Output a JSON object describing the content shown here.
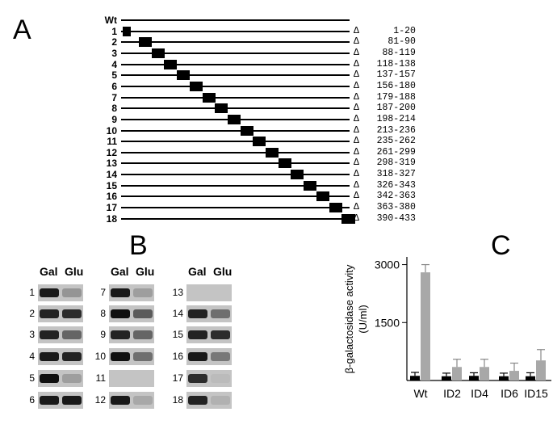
{
  "panel_a": {
    "letter": "A",
    "rows": [
      {
        "id": "Wt",
        "deletion": ""
      },
      {
        "id": "1",
        "deletion": "1-20"
      },
      {
        "id": "2",
        "deletion": "81-90"
      },
      {
        "id": "3",
        "deletion": "88-119"
      },
      {
        "id": "4",
        "deletion": "118-138"
      },
      {
        "id": "5",
        "deletion": "137-157"
      },
      {
        "id": "6",
        "deletion": "156-180"
      },
      {
        "id": "7",
        "deletion": "179-188"
      },
      {
        "id": "8",
        "deletion": "187-200"
      },
      {
        "id": "9",
        "deletion": "198-214"
      },
      {
        "id": "10",
        "deletion": "213-236"
      },
      {
        "id": "11",
        "deletion": "235-262"
      },
      {
        "id": "12",
        "deletion": "261-299"
      },
      {
        "id": "13",
        "deletion": "298-319"
      },
      {
        "id": "14",
        "deletion": "318-327"
      },
      {
        "id": "15",
        "deletion": "326-343"
      },
      {
        "id": "16",
        "deletion": "342-363"
      },
      {
        "id": "17",
        "deletion": "363-380"
      },
      {
        "id": "18",
        "deletion": "390-433"
      }
    ],
    "delta_symbol": "Δ"
  },
  "panel_b": {
    "letter": "B",
    "columns": [
      {
        "header_gal": "Gal",
        "header_glu": "Glu",
        "lanes": [
          {
            "num": "1",
            "gal": 0.9,
            "glu": 0.25
          },
          {
            "num": "2",
            "gal": 0.85,
            "glu": 0.8
          },
          {
            "num": "3",
            "gal": 0.85,
            "glu": 0.5
          },
          {
            "num": "4",
            "gal": 0.9,
            "glu": 0.85
          },
          {
            "num": "5",
            "gal": 0.95,
            "glu": 0.2
          },
          {
            "num": "6",
            "gal": 0.9,
            "glu": 0.9
          }
        ]
      },
      {
        "header_gal": "Gal",
        "header_glu": "Glu",
        "lanes": [
          {
            "num": "7",
            "gal": 0.9,
            "glu": 0.2
          },
          {
            "num": "8",
            "gal": 0.95,
            "glu": 0.55
          },
          {
            "num": "9",
            "gal": 0.85,
            "glu": 0.5
          },
          {
            "num": "10",
            "gal": 0.95,
            "glu": 0.45
          },
          {
            "num": "11",
            "gal": 0.0,
            "glu": 0.0
          },
          {
            "num": "12",
            "gal": 0.9,
            "glu": 0.15
          }
        ]
      },
      {
        "header_gal": "Gal",
        "header_glu": "Glu",
        "lanes": [
          {
            "num": "13",
            "gal": 0.0,
            "glu": 0.0
          },
          {
            "num": "14",
            "gal": 0.85,
            "glu": 0.45
          },
          {
            "num": "15",
            "gal": 0.85,
            "glu": 0.8
          },
          {
            "num": "16",
            "gal": 0.9,
            "glu": 0.4
          },
          {
            "num": "17",
            "gal": 0.8,
            "glu": 0.05
          },
          {
            "num": "18",
            "gal": 0.85,
            "glu": 0.1
          }
        ]
      }
    ]
  },
  "chart_data": {
    "type": "bar",
    "letter": "C",
    "categories": [
      "Wt",
      "ID2",
      "ID4",
      "ID6",
      "ID15"
    ],
    "series": [
      {
        "color": "#000000",
        "values": [
          120,
          110,
          120,
          110,
          110
        ],
        "errors": [
          90,
          80,
          80,
          80,
          90
        ]
      },
      {
        "color": "#a8a8a8",
        "values": [
          2800,
          350,
          350,
          250,
          520
        ],
        "errors": [
          200,
          200,
          200,
          200,
          280
        ]
      }
    ],
    "ylabel": "β-galactosidase activity (U/ml)",
    "ylabel_line1": "β-galactosidase activity",
    "ylabel_line2": "(U/ml)",
    "yticks": [
      "1500",
      "3000"
    ],
    "ylim": [
      0,
      3200
    ],
    "grid": false
  }
}
